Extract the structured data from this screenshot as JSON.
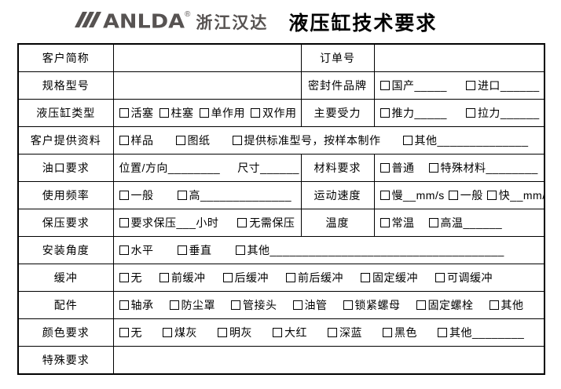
{
  "colors": {
    "ink": "#000000",
    "logo_gray": "#575352"
  },
  "header": {
    "logo_text": "ANLDA",
    "logo_reg": "®",
    "logo_cn": "浙江汉达",
    "title": "液压缸技术要求"
  },
  "table": {
    "rows": [
      {
        "cells": [
          {
            "kind": "label",
            "text": "客户简称"
          },
          {
            "kind": "content",
            "segs": []
          },
          {
            "kind": "label",
            "text": "订单号"
          },
          {
            "kind": "content",
            "segs": []
          }
        ]
      },
      {
        "cells": [
          {
            "kind": "label",
            "text": "规格型号"
          },
          {
            "kind": "content",
            "segs": []
          },
          {
            "kind": "label",
            "text": "密封件品牌"
          },
          {
            "kind": "content",
            "segs": [
              {
                "cb": true,
                "text": "国产",
                "tail": "_____"
              },
              {
                "cb": true,
                "text": "进口",
                "tail": "______"
              }
            ]
          }
        ]
      },
      {
        "cells": [
          {
            "kind": "label",
            "text": "液压缸类型"
          },
          {
            "kind": "content",
            "segs": [
              {
                "cb": true,
                "text": "活塞"
              },
              {
                "cb": true,
                "text": "柱塞"
              },
              {
                "cb": true,
                "text": "单作用"
              },
              {
                "cb": true,
                "text": "双作用"
              }
            ]
          },
          {
            "kind": "label",
            "text": "主要受力"
          },
          {
            "kind": "content",
            "segs": [
              {
                "cb": true,
                "text": "推力",
                "tail": "_____"
              },
              {
                "cb": true,
                "text": "拉力",
                "tail": "______"
              }
            ]
          }
        ]
      },
      {
        "cells": [
          {
            "kind": "label",
            "text": "客户提供资料"
          },
          {
            "kind": "content",
            "span": 3,
            "segs": [
              {
                "cb": true,
                "text": "样品"
              },
              {
                "cb": true,
                "text": "图纸"
              },
              {
                "cb": true,
                "text": "提供标准型号，按样本制作"
              },
              {
                "cb": true,
                "text": "其他",
                "tail": "______________"
              }
            ]
          }
        ]
      },
      {
        "cells": [
          {
            "kind": "label",
            "text": "油口要求"
          },
          {
            "kind": "content",
            "segs": [
              {
                "cb": false,
                "text": "位置/方向________"
              },
              {
                "cb": false,
                "text": "尺寸______"
              }
            ]
          },
          {
            "kind": "label",
            "text": "材料要求"
          },
          {
            "kind": "content",
            "segs": [
              {
                "cb": true,
                "text": "普通"
              },
              {
                "cb": true,
                "text": "特殊材料",
                "tail": "________"
              }
            ]
          }
        ]
      },
      {
        "cells": [
          {
            "kind": "label",
            "text": "使用频率"
          },
          {
            "kind": "content",
            "segs": [
              {
                "cb": true,
                "text": "一般"
              },
              {
                "cb": true,
                "text": "高",
                "tail": "______________"
              }
            ]
          },
          {
            "kind": "label",
            "text": "运动速度"
          },
          {
            "kind": "content",
            "segs": [
              {
                "cb": true,
                "text": "慢",
                "tail": "__mm/s"
              },
              {
                "cb": true,
                "text": "一般"
              },
              {
                "cb": true,
                "text": "快",
                "tail": "__mm/"
              }
            ]
          }
        ]
      },
      {
        "cells": [
          {
            "kind": "label",
            "text": "保压要求"
          },
          {
            "kind": "content",
            "segs": [
              {
                "cb": true,
                "text": "要求保压",
                "tail": "___小时"
              },
              {
                "cb": true,
                "text": "无需保压"
              }
            ]
          },
          {
            "kind": "label",
            "text": "温度"
          },
          {
            "kind": "content",
            "segs": [
              {
                "cb": true,
                "text": "常温"
              },
              {
                "cb": true,
                "text": "高温",
                "tail": "______"
              }
            ]
          }
        ]
      },
      {
        "cells": [
          {
            "kind": "label",
            "text": "安装角度"
          },
          {
            "kind": "content",
            "span": 3,
            "segs": [
              {
                "cb": true,
                "text": "水平"
              },
              {
                "cb": true,
                "text": "垂直"
              },
              {
                "cb": true,
                "text": "其他",
                "tail": "____________________________________"
              }
            ]
          }
        ]
      },
      {
        "cells": [
          {
            "kind": "label",
            "text": "缓冲"
          },
          {
            "kind": "content",
            "span": 3,
            "segs": [
              {
                "cb": true,
                "text": "无"
              },
              {
                "cb": true,
                "text": "前缓冲"
              },
              {
                "cb": true,
                "text": "后缓冲"
              },
              {
                "cb": true,
                "text": "前后缓冲"
              },
              {
                "cb": true,
                "text": "固定缓冲"
              },
              {
                "cb": true,
                "text": "可调缓冲"
              }
            ]
          }
        ]
      },
      {
        "cells": [
          {
            "kind": "label",
            "text": "配件"
          },
          {
            "kind": "content",
            "span": 3,
            "segs": [
              {
                "cb": true,
                "text": "轴承"
              },
              {
                "cb": true,
                "text": "防尘罩"
              },
              {
                "cb": true,
                "text": "管接头"
              },
              {
                "cb": true,
                "text": "油管"
              },
              {
                "cb": true,
                "text": "锁紧螺母"
              },
              {
                "cb": true,
                "text": "固定螺栓"
              },
              {
                "cb": true,
                "text": "其他"
              }
            ]
          }
        ]
      },
      {
        "cells": [
          {
            "kind": "label",
            "text": "颜色要求"
          },
          {
            "kind": "content",
            "span": 3,
            "segs": [
              {
                "cb": true,
                "text": "无"
              },
              {
                "cb": true,
                "text": "煤灰"
              },
              {
                "cb": true,
                "text": "明灰"
              },
              {
                "cb": true,
                "text": "大红"
              },
              {
                "cb": true,
                "text": "深蓝"
              },
              {
                "cb": true,
                "text": "黑色"
              },
              {
                "cb": true,
                "text": "其他",
                "tail": "________"
              }
            ]
          }
        ]
      },
      {
        "cells": [
          {
            "kind": "label",
            "text": "特殊要求"
          },
          {
            "kind": "content",
            "span": 3,
            "segs": []
          }
        ]
      }
    ]
  }
}
